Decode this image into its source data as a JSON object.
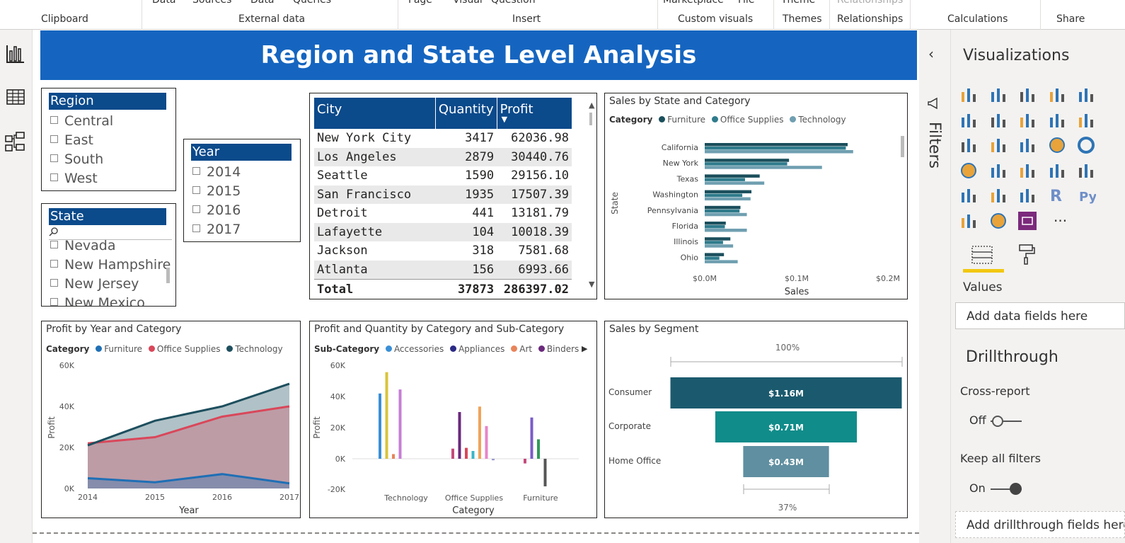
{
  "ribbon": {
    "top_labels": [
      "Data",
      "Sources",
      "Data",
      "Queries",
      "Page",
      "Visual",
      "Question",
      "Marketplace",
      "File",
      "Theme",
      "Relationships"
    ],
    "groups": [
      "Clipboard",
      "External data",
      "Insert",
      "Custom visuals",
      "Themes",
      "Relationships",
      "Calculations",
      "Share"
    ]
  },
  "leftnav": {
    "icons": [
      "report-view-icon",
      "data-view-icon",
      "model-view-icon"
    ]
  },
  "page": {
    "title": "Region and State Level Analysis"
  },
  "region_slicer": {
    "header": "Region",
    "items": [
      "Central",
      "East",
      "South",
      "West"
    ]
  },
  "state_slicer": {
    "header": "State",
    "search_icon": "search-icon",
    "items": [
      "Nevada",
      "New Hampshire",
      "New Jersey",
      "New Mexico"
    ]
  },
  "year_slicer": {
    "header": "Year",
    "items": [
      "2014",
      "2015",
      "2016",
      "2017"
    ]
  },
  "city_table": {
    "columns": [
      "City",
      "Quantity",
      "Profit"
    ],
    "rows": [
      [
        "New York City",
        "3417",
        "62036.98"
      ],
      [
        "Los Angeles",
        "2879",
        "30440.76"
      ],
      [
        "Seattle",
        "1590",
        "29156.10"
      ],
      [
        "San Francisco",
        "1935",
        "17507.39"
      ],
      [
        "Detroit",
        "441",
        "13181.79"
      ],
      [
        "Lafayette",
        "104",
        "10018.39"
      ],
      [
        "Jackson",
        "318",
        "7581.68"
      ],
      [
        "Atlanta",
        "156",
        "6993.66"
      ]
    ],
    "total": [
      "Total",
      "37873",
      "286397.02"
    ]
  },
  "state_chart": {
    "title": "Sales by State and Category",
    "legend_title": "Category",
    "legend": [
      {
        "name": "Furniture",
        "color": "#1b4f5c"
      },
      {
        "name": "Office Supplies",
        "color": "#2f7b8c"
      },
      {
        "name": "Technology",
        "color": "#6f9fb0"
      }
    ],
    "ylabel": "State",
    "xlabel": "Sales",
    "ticks": [
      "$0.0M",
      "$0.1M",
      "$0.2M"
    ]
  },
  "area_chart": {
    "title": "Profit by Year and Category",
    "legend_title": "Category",
    "legend": [
      {
        "name": "Furniture",
        "color": "#1f6fb5"
      },
      {
        "name": "Office Supplies",
        "color": "#d9475a"
      },
      {
        "name": "Technology",
        "color": "#1e4f5e"
      }
    ],
    "ylabel": "Profit",
    "xlabel": "Year",
    "yticks": [
      "60K",
      "40K",
      "20K",
      "0K"
    ]
  },
  "column_chart": {
    "title": "Profit and Quantity by Category and Sub-Category",
    "legend_title": "Sub-Category",
    "legend": [
      {
        "name": "Accessories",
        "color": "#3a8fd6"
      },
      {
        "name": "Appliances",
        "color": "#2a2a86"
      },
      {
        "name": "Art",
        "color": "#e8845a"
      },
      {
        "name": "Binders",
        "color": "#6b2a7c"
      }
    ],
    "ylabel": "Profit",
    "xlabel": "Category",
    "yticks": [
      "60K",
      "40K",
      "20K",
      "0K",
      "-20K"
    ]
  },
  "funnel": {
    "title": "Sales by Segment",
    "top_label": "100%",
    "bottom_label": "37%",
    "labels": [
      "$1.16M",
      "$0.71M",
      "$0.43M"
    ]
  },
  "chart_data": [
    {
      "type": "bar",
      "title": "Sales by State and Category",
      "xlabel": "Sales",
      "ylabel": "State",
      "xlim": [
        0,
        0.2
      ],
      "categories": [
        "California",
        "New York",
        "Texas",
        "Washington",
        "Pennsylvania",
        "Florida",
        "Illinois",
        "Ohio"
      ],
      "series": [
        {
          "name": "Furniture",
          "values": [
            0.156,
            0.092,
            0.06,
            0.051,
            0.039,
            0.023,
            0.028,
            0.021
          ]
        },
        {
          "name": "Office Supplies",
          "values": [
            0.154,
            0.09,
            0.044,
            0.041,
            0.038,
            0.022,
            0.02,
            0.016
          ]
        },
        {
          "name": "Technology",
          "values": [
            0.162,
            0.128,
            0.065,
            0.05,
            0.046,
            0.046,
            0.031,
            0.036
          ]
        }
      ]
    },
    {
      "type": "area",
      "title": "Profit by Year and Category",
      "xlabel": "Year",
      "ylabel": "Profit",
      "ylim": [
        0,
        60000
      ],
      "x": [
        "2014",
        "2015",
        "2016",
        "2017"
      ],
      "series": [
        {
          "name": "Furniture",
          "values": [
            5000,
            3000,
            7000,
            2500
          ]
        },
        {
          "name": "Office Supplies",
          "values": [
            22000,
            25000,
            35000,
            40000
          ]
        },
        {
          "name": "Technology",
          "values": [
            21000,
            33000,
            40000,
            51000
          ]
        }
      ]
    },
    {
      "type": "bar",
      "title": "Profit and Quantity by Category and Sub-Category",
      "xlabel": "Category",
      "ylabel": "Profit",
      "ylim": [
        -20000,
        60000
      ],
      "categories": [
        "Technology",
        "Office Supplies",
        "Furniture"
      ],
      "series": [
        {
          "name": "Technology",
          "color": "#3a8fd6",
          "values": [
            41900,
            0,
            0
          ]
        },
        {
          "name": "Technology",
          "color": "#d8c43a",
          "values": [
            55600,
            0,
            0
          ]
        },
        {
          "name": "Technology",
          "color": "#e8845a",
          "values": [
            3000,
            0,
            0
          ]
        },
        {
          "name": "Technology",
          "color": "#c77dd6",
          "values": [
            44500,
            0,
            0
          ]
        },
        {
          "name": "Office Supplies",
          "color": "#c44b7a",
          "values": [
            0,
            6500,
            0
          ]
        },
        {
          "name": "Office Supplies",
          "color": "#6b2a7c",
          "values": [
            0,
            30000,
            0
          ]
        },
        {
          "name": "Office Supplies",
          "color": "#d9475a",
          "values": [
            0,
            7000,
            0
          ]
        },
        {
          "name": "Office Supplies",
          "color": "#3ab5c8",
          "values": [
            0,
            5000,
            0
          ]
        },
        {
          "name": "Office Supplies",
          "color": "#f0a35a",
          "values": [
            0,
            33500,
            0
          ]
        },
        {
          "name": "Office Supplies",
          "color": "#e885c8",
          "values": [
            0,
            21000,
            0
          ]
        },
        {
          "name": "Office Supplies",
          "color": "#9a9ad0",
          "values": [
            0,
            -1000,
            0
          ]
        },
        {
          "name": "Furniture",
          "color": "#c44b7a",
          "values": [
            0,
            0,
            -3000
          ]
        },
        {
          "name": "Furniture",
          "color": "#7a5cc8",
          "values": [
            0,
            0,
            26500
          ]
        },
        {
          "name": "Furniture",
          "color": "#2e9a5a",
          "values": [
            0,
            0,
            12500
          ]
        },
        {
          "name": "Furniture",
          "color": "#555555",
          "values": [
            0,
            0,
            -17700
          ]
        }
      ]
    },
    {
      "type": "bar",
      "title": "Sales by Segment",
      "categories": [
        "Consumer",
        "Corporate",
        "Home Office"
      ],
      "values": [
        1.16,
        0.71,
        0.43
      ]
    }
  ],
  "filters_pane": {
    "label": "Filters"
  },
  "viz_pane": {
    "title": "Visualizations",
    "values_label": "Values",
    "values_placeholder": "Add data fields here",
    "drill_title": "Drillthrough",
    "cross_report": "Cross-report",
    "cross_state": "Off",
    "keep_filters": "Keep all filters",
    "keep_state": "On",
    "drill_placeholder": "Add drillthrough fields here",
    "more": "···"
  }
}
